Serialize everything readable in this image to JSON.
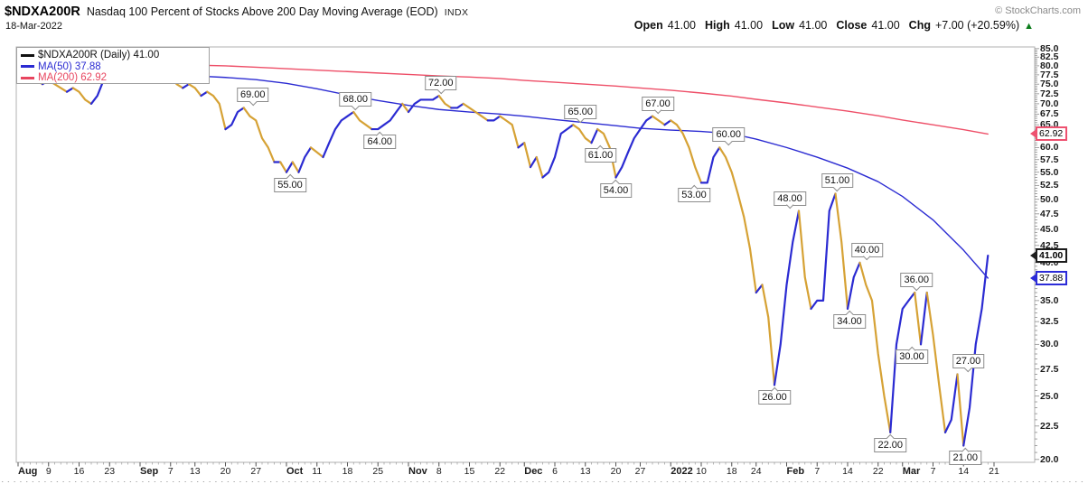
{
  "header": {
    "symbol": "$NDXA200R",
    "title": "Nasdaq 100 Percent of Stocks Above 200 Day Moving Average (EOD)",
    "exchange": "INDX",
    "copyright": "© StockCharts.com",
    "date": "18-Mar-2022",
    "quote": {
      "open_label": "Open",
      "open": "41.00",
      "high_label": "High",
      "high": "41.00",
      "low_label": "Low",
      "low": "41.00",
      "close_label": "Close",
      "close": "41.00",
      "chg_label": "Chg",
      "chg": "+7.00 (+20.59%)",
      "arrow": "▲",
      "direction": "up"
    }
  },
  "legend": {
    "series": [
      {
        "label": "$NDXA200R (Daily) 41.00",
        "color": "#111111"
      },
      {
        "label": "MA(50) 37.88",
        "color": "#2b2bd2"
      },
      {
        "label": "MA(200) 62.92",
        "color": "#e8455f"
      }
    ]
  },
  "axis_boxes": [
    {
      "name": "ma200-price-box",
      "text": "62.92",
      "value": 62.92,
      "border": "#ee5170",
      "bold": false
    },
    {
      "name": "last-price-box",
      "text": "41.00",
      "value": 41.0,
      "border": "#1c1c1c",
      "bold": true
    },
    {
      "name": "ma50-price-box",
      "text": "37.88",
      "value": 37.88,
      "border": "#2c2cd8",
      "bold": false
    }
  ],
  "colors": {
    "price_up": "#2b2bd2",
    "price_down": "#d6a235",
    "ma50": "#2b2bd2",
    "ma200": "#ee4f68",
    "chg_up_arrow": "#0b7c1b",
    "plot_border": "#b0b0b0"
  },
  "chart_data": {
    "type": "line",
    "title": "$NDXA200R Nasdaq 100 Percent of Stocks Above 200 Day Moving Average (EOD)",
    "xlabel": "",
    "ylabel": "",
    "y_scale": "log",
    "ylim": [
      19.8,
      85.5
    ],
    "grid": false,
    "legend_position": "top-left",
    "y_ticks": [
      "85.0",
      "82.5",
      "80.0",
      "77.5",
      "75.0",
      "72.5",
      "70.0",
      "67.5",
      "65.0",
      "62.5",
      "60.0",
      "57.5",
      "55.0",
      "52.5",
      "50.0",
      "47.5",
      "45.0",
      "42.5",
      "40.0",
      "37.5",
      "35.0",
      "32.5",
      "30.0",
      "27.5",
      "25.0",
      "22.5",
      "20.0"
    ],
    "x_tick_labels": [
      "Aug",
      "9",
      "16",
      "23",
      "Sep",
      "7",
      "13",
      "20",
      "27",
      "Oct",
      "11",
      "18",
      "25",
      "Nov",
      "8",
      "15",
      "22",
      "Dec",
      "6",
      "13",
      "20",
      "27",
      "2022",
      "10",
      "18",
      "24",
      "Feb",
      "7",
      "14",
      "22",
      "Mar",
      "7",
      "14",
      "21"
    ],
    "x_tick_bold": [
      true,
      false,
      false,
      false,
      true,
      false,
      false,
      false,
      false,
      true,
      false,
      false,
      false,
      true,
      false,
      false,
      false,
      true,
      false,
      false,
      false,
      false,
      true,
      false,
      false,
      false,
      true,
      false,
      false,
      false,
      true,
      false,
      false,
      false
    ],
    "x_tick_day_index": [
      0,
      5,
      10,
      15,
      20,
      25,
      29,
      34,
      39,
      44,
      49,
      54,
      59,
      64,
      69,
      74,
      79,
      83,
      88,
      93,
      98,
      102,
      107,
      112,
      117,
      121,
      126,
      131,
      136,
      141,
      145,
      150,
      155,
      160
    ],
    "n_days": 160,
    "series": [
      {
        "name": "$NDXA200R daily close",
        "style": "two-color-line",
        "up_color": "#2b2bd2",
        "down_color": "#d6a235",
        "values": [
          79,
          78,
          77,
          76,
          75,
          76,
          75,
          74,
          73,
          74,
          73,
          71,
          70,
          72,
          76,
          80,
          83,
          84,
          77,
          79,
          78,
          80,
          80,
          79,
          78,
          77,
          75,
          74,
          75,
          74,
          72,
          73,
          72,
          70,
          64,
          65,
          68,
          69,
          67,
          66,
          62,
          60,
          57,
          57,
          55,
          57,
          55,
          58,
          60,
          59,
          58,
          61,
          64,
          66,
          67,
          68,
          66,
          65,
          64,
          64,
          65,
          66,
          68,
          70,
          68,
          70,
          71,
          71,
          71,
          72,
          70,
          69,
          69,
          70,
          69,
          68,
          67,
          66,
          66,
          67,
          66,
          65,
          60,
          61,
          56,
          58,
          54,
          55,
          58,
          63,
          64,
          65,
          64,
          62,
          61,
          64,
          63,
          60,
          54,
          56,
          59,
          62,
          64,
          66,
          67,
          66,
          65,
          66,
          65,
          63,
          60,
          56,
          53,
          53,
          58,
          60,
          58,
          55,
          51,
          47,
          42,
          36,
          37,
          33,
          26,
          30,
          37,
          43,
          48,
          38,
          34,
          35,
          35,
          48,
          51,
          43,
          34,
          38,
          40,
          37,
          35,
          29,
          25,
          22,
          30,
          34,
          35,
          36,
          30,
          36,
          31,
          26,
          22,
          23,
          27,
          21,
          24,
          30,
          34,
          41
        ]
      },
      {
        "name": "MA(50)",
        "style": "line",
        "color": "#2b2bd2",
        "at_day_index": [
          0,
          5,
          10,
          15,
          20,
          25,
          29,
          34,
          39,
          44,
          49,
          54,
          59,
          64,
          69,
          74,
          79,
          83,
          88,
          93,
          98,
          102,
          107,
          112,
          117,
          121,
          126,
          131,
          136,
          141,
          145,
          150,
          155,
          159
        ],
        "values": [
          79,
          78.6,
          78.2,
          77.8,
          77.6,
          77.5,
          77.2,
          76.8,
          76.2,
          75.2,
          73.8,
          72.2,
          70.8,
          69.6,
          68.6,
          68,
          67.5,
          67,
          66.2,
          65.5,
          64.8,
          64.2,
          63.8,
          63.5,
          63,
          61.8,
          60,
          58,
          55.8,
          53.2,
          50.5,
          46.5,
          41.8,
          37.88
        ]
      },
      {
        "name": "MA(200)",
        "style": "line",
        "color": "#ee4f68",
        "at_day_index": [
          0,
          5,
          10,
          15,
          20,
          25,
          29,
          34,
          39,
          44,
          49,
          54,
          59,
          64,
          69,
          74,
          79,
          83,
          88,
          93,
          98,
          102,
          107,
          112,
          117,
          121,
          126,
          131,
          136,
          141,
          145,
          150,
          155,
          159
        ],
        "values": [
          81,
          81,
          80.9,
          80.8,
          80.6,
          80.4,
          80.2,
          80,
          79.6,
          79.2,
          78.8,
          78.4,
          78,
          77.6,
          77.2,
          76.9,
          76.5,
          76,
          75.5,
          75,
          74.5,
          74,
          73.4,
          72.7,
          71.9,
          71.1,
          70.2,
          69.2,
          68.2,
          67.1,
          66.1,
          65,
          63.9,
          62.92
        ]
      }
    ],
    "annotations": [
      {
        "text": "69.00",
        "day_index": 37,
        "value": 69,
        "position": "above",
        "dx": 10
      },
      {
        "text": "55.00",
        "day_index": 44,
        "value": 55,
        "position": "below",
        "dx": 4
      },
      {
        "text": "68.00",
        "day_index": 55,
        "value": 68,
        "position": "above",
        "dx": 2
      },
      {
        "text": "64.00",
        "day_index": 59,
        "value": 64,
        "position": "below",
        "dx": 2
      },
      {
        "text": "72.00",
        "day_index": 69,
        "value": 72,
        "position": "above",
        "dx": 2
      },
      {
        "text": "65.00",
        "day_index": 91,
        "value": 65,
        "position": "above",
        "dx": 8
      },
      {
        "text": "61.00",
        "day_index": 94,
        "value": 61,
        "position": "below",
        "dx": 10
      },
      {
        "text": "54.00",
        "day_index": 98,
        "value": 54,
        "position": "below",
        "dx": 0
      },
      {
        "text": "67.00",
        "day_index": 104,
        "value": 67,
        "position": "above",
        "dx": 6
      },
      {
        "text": "53.00",
        "day_index": 112,
        "value": 53,
        "position": "below",
        "dx": -8
      },
      {
        "text": "60.00",
        "day_index": 115,
        "value": 60,
        "position": "above",
        "dx": 10
      },
      {
        "text": "48.00",
        "day_index": 128,
        "value": 48,
        "position": "above",
        "dx": -10
      },
      {
        "text": "26.00",
        "day_index": 124,
        "value": 26,
        "position": "below",
        "dx": 0
      },
      {
        "text": "51.00",
        "day_index": 134,
        "value": 51,
        "position": "above",
        "dx": 2
      },
      {
        "text": "34.00",
        "day_index": 136,
        "value": 34,
        "position": "below",
        "dx": 2
      },
      {
        "text": "40.00",
        "day_index": 138,
        "value": 40,
        "position": "above",
        "dx": 8
      },
      {
        "text": "22.00",
        "day_index": 143,
        "value": 22,
        "position": "below",
        "dx": 0
      },
      {
        "text": "36.00",
        "day_index": 147,
        "value": 36,
        "position": "above",
        "dx": 2
      },
      {
        "text": "30.00",
        "day_index": 148,
        "value": 30,
        "position": "below",
        "dx": -10
      },
      {
        "text": "27.00",
        "day_index": 154,
        "value": 27,
        "position": "above",
        "dx": 12
      },
      {
        "text": "21.00",
        "day_index": 155,
        "value": 21,
        "position": "below",
        "dx": 2
      }
    ]
  }
}
